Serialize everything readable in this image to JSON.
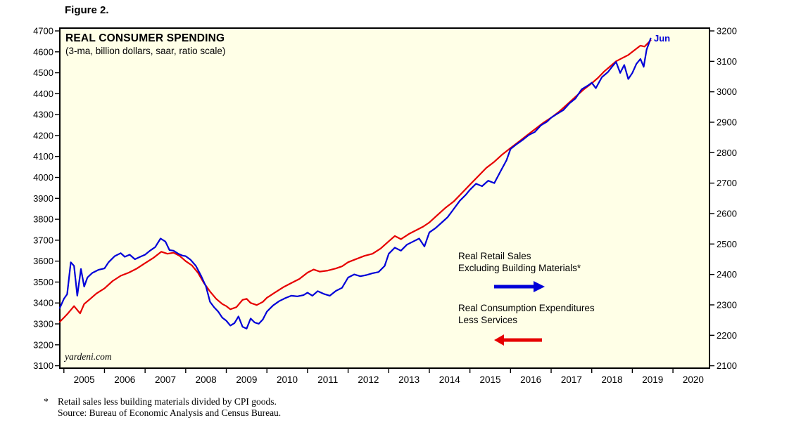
{
  "figure_label": "Figure 2.",
  "chart": {
    "title": "REAL CONSUMER SPENDING",
    "subtitle": "(3-ma, billion dollars, saar, ratio scale)",
    "watermark": "yardeni.com",
    "end_label": "Jun",
    "background": "#FFFFE7",
    "legend": [
      {
        "name": "Real Retail Sales Excluding Building Materials*",
        "lines": [
          "Real Retail Sales",
          "Excluding Building Materials*"
        ],
        "color": "#0000D8",
        "arrow": "right"
      },
      {
        "name": "Real Consumption Expenditures Less Services",
        "lines": [
          "Real Consumption Expenditures",
          "Less Services"
        ],
        "color": "#E60000",
        "arrow": "left"
      }
    ]
  },
  "footnote": {
    "marker": "*",
    "lines": [
      "Retail sales less building materials divided by CPI goods.",
      "Source: Bureau of Economic Analysis and Census Bureau."
    ]
  },
  "chart_data": {
    "type": "line",
    "title": "REAL CONSUMER SPENDING",
    "subtitle": "(3-ma, billion dollars, saar, ratio scale)",
    "grid": false,
    "x_axis": {
      "range": [
        2004.9,
        2020.9
      ],
      "year_labels": [
        "2005",
        "2006",
        "2007",
        "2008",
        "2009",
        "2010",
        "2011",
        "2012",
        "2013",
        "2014",
        "2015",
        "2016",
        "2017",
        "2018",
        "2019",
        "2020"
      ],
      "tick_positions": [
        2005,
        2006,
        2007,
        2008,
        2009,
        2010,
        2011,
        2012,
        2013,
        2014,
        2015,
        2016,
        2017,
        2018,
        2019,
        2020
      ]
    },
    "left_axis": {
      "range": [
        3100,
        4700
      ],
      "ticks": [
        3100,
        3200,
        3300,
        3400,
        3500,
        3600,
        3700,
        3800,
        3900,
        4000,
        4100,
        4200,
        4300,
        4400,
        4500,
        4600,
        4700
      ]
    },
    "right_axis": {
      "range": [
        2100,
        3200
      ],
      "ticks": [
        2100,
        2200,
        2300,
        2400,
        2500,
        2600,
        2700,
        2800,
        2900,
        3000,
        3100,
        3200
      ]
    },
    "series": [
      {
        "name": "Real Consumption Expenditures Less Services",
        "axis": "left",
        "color": "#E60000",
        "points": [
          [
            2004.9,
            3310
          ],
          [
            2005.0,
            3330
          ],
          [
            2005.1,
            3350
          ],
          [
            2005.25,
            3385
          ],
          [
            2005.4,
            3350
          ],
          [
            2005.5,
            3395
          ],
          [
            2005.65,
            3420
          ],
          [
            2005.8,
            3445
          ],
          [
            2006.0,
            3470
          ],
          [
            2006.2,
            3505
          ],
          [
            2006.4,
            3530
          ],
          [
            2006.6,
            3545
          ],
          [
            2006.8,
            3565
          ],
          [
            2007.0,
            3590
          ],
          [
            2007.2,
            3615
          ],
          [
            2007.4,
            3645
          ],
          [
            2007.55,
            3635
          ],
          [
            2007.7,
            3640
          ],
          [
            2007.85,
            3625
          ],
          [
            2008.0,
            3600
          ],
          [
            2008.15,
            3580
          ],
          [
            2008.3,
            3545
          ],
          [
            2008.45,
            3495
          ],
          [
            2008.6,
            3455
          ],
          [
            2008.75,
            3420
          ],
          [
            2008.9,
            3395
          ],
          [
            2009.0,
            3385
          ],
          [
            2009.1,
            3370
          ],
          [
            2009.25,
            3380
          ],
          [
            2009.4,
            3415
          ],
          [
            2009.5,
            3420
          ],
          [
            2009.6,
            3400
          ],
          [
            2009.75,
            3390
          ],
          [
            2009.9,
            3405
          ],
          [
            2010.0,
            3425
          ],
          [
            2010.2,
            3450
          ],
          [
            2010.4,
            3475
          ],
          [
            2010.6,
            3495
          ],
          [
            2010.8,
            3515
          ],
          [
            2011.0,
            3545
          ],
          [
            2011.15,
            3560
          ],
          [
            2011.3,
            3550
          ],
          [
            2011.5,
            3555
          ],
          [
            2011.7,
            3565
          ],
          [
            2011.85,
            3575
          ],
          [
            2012.0,
            3595
          ],
          [
            2012.2,
            3610
          ],
          [
            2012.4,
            3625
          ],
          [
            2012.6,
            3635
          ],
          [
            2012.8,
            3660
          ],
          [
            2013.0,
            3695
          ],
          [
            2013.15,
            3720
          ],
          [
            2013.3,
            3705
          ],
          [
            2013.5,
            3730
          ],
          [
            2013.7,
            3750
          ],
          [
            2013.85,
            3765
          ],
          [
            2014.0,
            3785
          ],
          [
            2014.2,
            3820
          ],
          [
            2014.4,
            3855
          ],
          [
            2014.6,
            3885
          ],
          [
            2014.8,
            3925
          ],
          [
            2015.0,
            3965
          ],
          [
            2015.2,
            4005
          ],
          [
            2015.4,
            4045
          ],
          [
            2015.6,
            4075
          ],
          [
            2015.8,
            4110
          ],
          [
            2016.0,
            4140
          ],
          [
            2016.2,
            4170
          ],
          [
            2016.4,
            4200
          ],
          [
            2016.6,
            4230
          ],
          [
            2016.8,
            4260
          ],
          [
            2017.0,
            4285
          ],
          [
            2017.2,
            4315
          ],
          [
            2017.4,
            4350
          ],
          [
            2017.6,
            4385
          ],
          [
            2017.8,
            4420
          ],
          [
            2018.0,
            4450
          ],
          [
            2018.15,
            4475
          ],
          [
            2018.3,
            4505
          ],
          [
            2018.45,
            4530
          ],
          [
            2018.6,
            4555
          ],
          [
            2018.75,
            4570
          ],
          [
            2018.9,
            4585
          ],
          [
            2019.0,
            4600
          ],
          [
            2019.1,
            4615
          ],
          [
            2019.2,
            4630
          ],
          [
            2019.3,
            4625
          ],
          [
            2019.45,
            4655
          ]
        ]
      },
      {
        "name": "Real Retail Sales Excluding Building Materials",
        "axis": "right",
        "color": "#0000D8",
        "points": [
          [
            2004.9,
            2290
          ],
          [
            2005.0,
            2320
          ],
          [
            2005.08,
            2335
          ],
          [
            2005.17,
            2440
          ],
          [
            2005.25,
            2428
          ],
          [
            2005.33,
            2330
          ],
          [
            2005.42,
            2418
          ],
          [
            2005.5,
            2360
          ],
          [
            2005.58,
            2390
          ],
          [
            2005.7,
            2405
          ],
          [
            2005.85,
            2415
          ],
          [
            2006.0,
            2420
          ],
          [
            2006.1,
            2440
          ],
          [
            2006.25,
            2460
          ],
          [
            2006.4,
            2470
          ],
          [
            2006.5,
            2458
          ],
          [
            2006.62,
            2465
          ],
          [
            2006.75,
            2450
          ],
          [
            2006.88,
            2458
          ],
          [
            2007.0,
            2465
          ],
          [
            2007.12,
            2478
          ],
          [
            2007.25,
            2490
          ],
          [
            2007.38,
            2518
          ],
          [
            2007.5,
            2508
          ],
          [
            2007.6,
            2480
          ],
          [
            2007.7,
            2478
          ],
          [
            2007.82,
            2468
          ],
          [
            2007.92,
            2462
          ],
          [
            2008.0,
            2460
          ],
          [
            2008.12,
            2448
          ],
          [
            2008.25,
            2428
          ],
          [
            2008.38,
            2395
          ],
          [
            2008.5,
            2360
          ],
          [
            2008.6,
            2310
          ],
          [
            2008.7,
            2292
          ],
          [
            2008.8,
            2278
          ],
          [
            2008.9,
            2258
          ],
          [
            2009.0,
            2248
          ],
          [
            2009.1,
            2232
          ],
          [
            2009.2,
            2240
          ],
          [
            2009.3,
            2262
          ],
          [
            2009.4,
            2228
          ],
          [
            2009.5,
            2222
          ],
          [
            2009.6,
            2255
          ],
          [
            2009.7,
            2242
          ],
          [
            2009.8,
            2238
          ],
          [
            2009.9,
            2252
          ],
          [
            2010.0,
            2278
          ],
          [
            2010.15,
            2298
          ],
          [
            2010.3,
            2312
          ],
          [
            2010.45,
            2322
          ],
          [
            2010.6,
            2330
          ],
          [
            2010.75,
            2328
          ],
          [
            2010.9,
            2332
          ],
          [
            2011.0,
            2340
          ],
          [
            2011.12,
            2330
          ],
          [
            2011.25,
            2345
          ],
          [
            2011.4,
            2336
          ],
          [
            2011.55,
            2330
          ],
          [
            2011.7,
            2346
          ],
          [
            2011.85,
            2356
          ],
          [
            2012.0,
            2390
          ],
          [
            2012.15,
            2400
          ],
          [
            2012.3,
            2394
          ],
          [
            2012.45,
            2398
          ],
          [
            2012.6,
            2404
          ],
          [
            2012.75,
            2408
          ],
          [
            2012.9,
            2428
          ],
          [
            2013.0,
            2468
          ],
          [
            2013.15,
            2488
          ],
          [
            2013.3,
            2478
          ],
          [
            2013.45,
            2498
          ],
          [
            2013.6,
            2508
          ],
          [
            2013.75,
            2518
          ],
          [
            2013.88,
            2492
          ],
          [
            2014.0,
            2538
          ],
          [
            2014.15,
            2552
          ],
          [
            2014.3,
            2570
          ],
          [
            2014.45,
            2588
          ],
          [
            2014.6,
            2615
          ],
          [
            2014.75,
            2642
          ],
          [
            2014.9,
            2662
          ],
          [
            2015.0,
            2678
          ],
          [
            2015.15,
            2698
          ],
          [
            2015.3,
            2690
          ],
          [
            2015.45,
            2708
          ],
          [
            2015.6,
            2700
          ],
          [
            2015.75,
            2738
          ],
          [
            2015.9,
            2775
          ],
          [
            2016.0,
            2812
          ],
          [
            2016.15,
            2828
          ],
          [
            2016.3,
            2842
          ],
          [
            2016.45,
            2858
          ],
          [
            2016.6,
            2868
          ],
          [
            2016.75,
            2890
          ],
          [
            2016.9,
            2902
          ],
          [
            2017.0,
            2915
          ],
          [
            2017.15,
            2928
          ],
          [
            2017.3,
            2940
          ],
          [
            2017.45,
            2962
          ],
          [
            2017.6,
            2978
          ],
          [
            2017.75,
            3008
          ],
          [
            2017.9,
            3020
          ],
          [
            2018.0,
            3030
          ],
          [
            2018.1,
            3012
          ],
          [
            2018.25,
            3048
          ],
          [
            2018.4,
            3065
          ],
          [
            2018.5,
            3082
          ],
          [
            2018.6,
            3098
          ],
          [
            2018.7,
            3062
          ],
          [
            2018.8,
            3088
          ],
          [
            2018.9,
            3042
          ],
          [
            2019.0,
            3062
          ],
          [
            2019.1,
            3092
          ],
          [
            2019.2,
            3108
          ],
          [
            2019.28,
            3082
          ],
          [
            2019.35,
            3138
          ],
          [
            2019.45,
            3175
          ]
        ]
      }
    ],
    "annotations": [
      {
        "text": "Jun",
        "series": "Real Retail Sales Excluding Building Materials",
        "x": 2019.45
      }
    ]
  }
}
